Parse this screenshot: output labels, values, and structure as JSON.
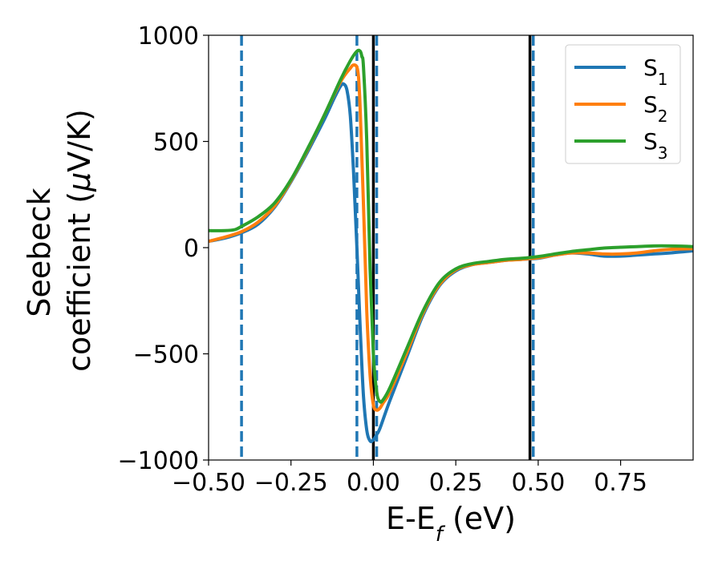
{
  "chart_data": {
    "type": "line",
    "xlabel_base": "E-E",
    "xlabel_sub": "f",
    "xlabel_unit": " (eV)",
    "ylabel_line1": "Seebeck",
    "ylabel_line2": "coefficient  (",
    "ylabel_mu": "μ",
    "ylabel_unit": "V/K)",
    "xlim": [
      -0.5,
      0.97
    ],
    "ylim": [
      -1000,
      1000
    ],
    "xticks": [
      -0.5,
      -0.25,
      0.0,
      0.25,
      0.5,
      0.75
    ],
    "xtick_labels": [
      "−0.50",
      "−0.25",
      "0.00",
      "0.25",
      "0.50",
      "0.75"
    ],
    "yticks": [
      -1000,
      -500,
      0,
      500,
      1000
    ],
    "ytick_labels": [
      "−1000",
      "−500",
      "0",
      "500",
      "1000"
    ],
    "legend_position": "top-right",
    "series": [
      {
        "name": "S",
        "sub": "1",
        "color": "#1f77b4",
        "x": [
          -0.5,
          -0.45,
          -0.4,
          -0.35,
          -0.3,
          -0.25,
          -0.2,
          -0.15,
          -0.12,
          -0.1,
          -0.09,
          -0.08,
          -0.07,
          -0.06,
          -0.05,
          -0.04,
          -0.03,
          -0.02,
          -0.01,
          0.0,
          0.01,
          0.02,
          0.05,
          0.1,
          0.15,
          0.2,
          0.25,
          0.3,
          0.35,
          0.4,
          0.45,
          0.5,
          0.55,
          0.6,
          0.65,
          0.7,
          0.75,
          0.8,
          0.85,
          0.9,
          0.97
        ],
        "y": [
          30,
          45,
          70,
          110,
          190,
          310,
          450,
          600,
          700,
          760,
          770,
          740,
          620,
          350,
          0,
          -380,
          -700,
          -860,
          -910,
          -905,
          -880,
          -850,
          -720,
          -520,
          -320,
          -180,
          -110,
          -80,
          -70,
          -60,
          -55,
          -50,
          -35,
          -25,
          -30,
          -40,
          -40,
          -35,
          -30,
          -25,
          -15
        ]
      },
      {
        "name": "S",
        "sub": "2",
        "color": "#ff7f0e",
        "x": [
          -0.5,
          -0.45,
          -0.4,
          -0.35,
          -0.3,
          -0.25,
          -0.2,
          -0.15,
          -0.1,
          -0.07,
          -0.06,
          -0.05,
          -0.045,
          -0.04,
          -0.03,
          -0.02,
          -0.01,
          0.0,
          0.01,
          0.02,
          0.03,
          0.05,
          0.1,
          0.15,
          0.2,
          0.25,
          0.3,
          0.35,
          0.4,
          0.45,
          0.5,
          0.55,
          0.6,
          0.65,
          0.7,
          0.75,
          0.8,
          0.85,
          0.9,
          0.97
        ],
        "y": [
          30,
          50,
          75,
          120,
          195,
          315,
          460,
          620,
          780,
          845,
          860,
          850,
          800,
          650,
          200,
          -300,
          -600,
          -740,
          -765,
          -755,
          -730,
          -680,
          -500,
          -310,
          -175,
          -105,
          -80,
          -70,
          -60,
          -55,
          -48,
          -35,
          -25,
          -25,
          -30,
          -30,
          -25,
          -15,
          -8,
          -5
        ]
      },
      {
        "name": "S",
        "sub": "3",
        "color": "#2ca02c",
        "x": [
          -0.5,
          -0.45,
          -0.42,
          -0.4,
          -0.35,
          -0.3,
          -0.25,
          -0.2,
          -0.15,
          -0.1,
          -0.07,
          -0.05,
          -0.04,
          -0.035,
          -0.03,
          -0.02,
          -0.01,
          0.0,
          0.01,
          0.02,
          0.03,
          0.05,
          0.1,
          0.15,
          0.2,
          0.25,
          0.3,
          0.35,
          0.4,
          0.45,
          0.5,
          0.55,
          0.6,
          0.65,
          0.7,
          0.75,
          0.8,
          0.85,
          0.9,
          0.97
        ],
        "y": [
          80,
          80,
          85,
          100,
          145,
          210,
          320,
          465,
          620,
          790,
          880,
          925,
          925,
          900,
          850,
          500,
          -100,
          -500,
          -680,
          -725,
          -715,
          -660,
          -480,
          -300,
          -165,
          -100,
          -75,
          -65,
          -55,
          -50,
          -42,
          -30,
          -18,
          -10,
          -2,
          2,
          5,
          8,
          8,
          5
        ]
      }
    ],
    "vlines_dashed": [
      -0.4,
      -0.05,
      0.01,
      0.485
    ],
    "vlines_solid": [
      0.0,
      0.475
    ],
    "vline_dashed_color": "#1f77b4",
    "vline_solid_color": "#000000"
  }
}
